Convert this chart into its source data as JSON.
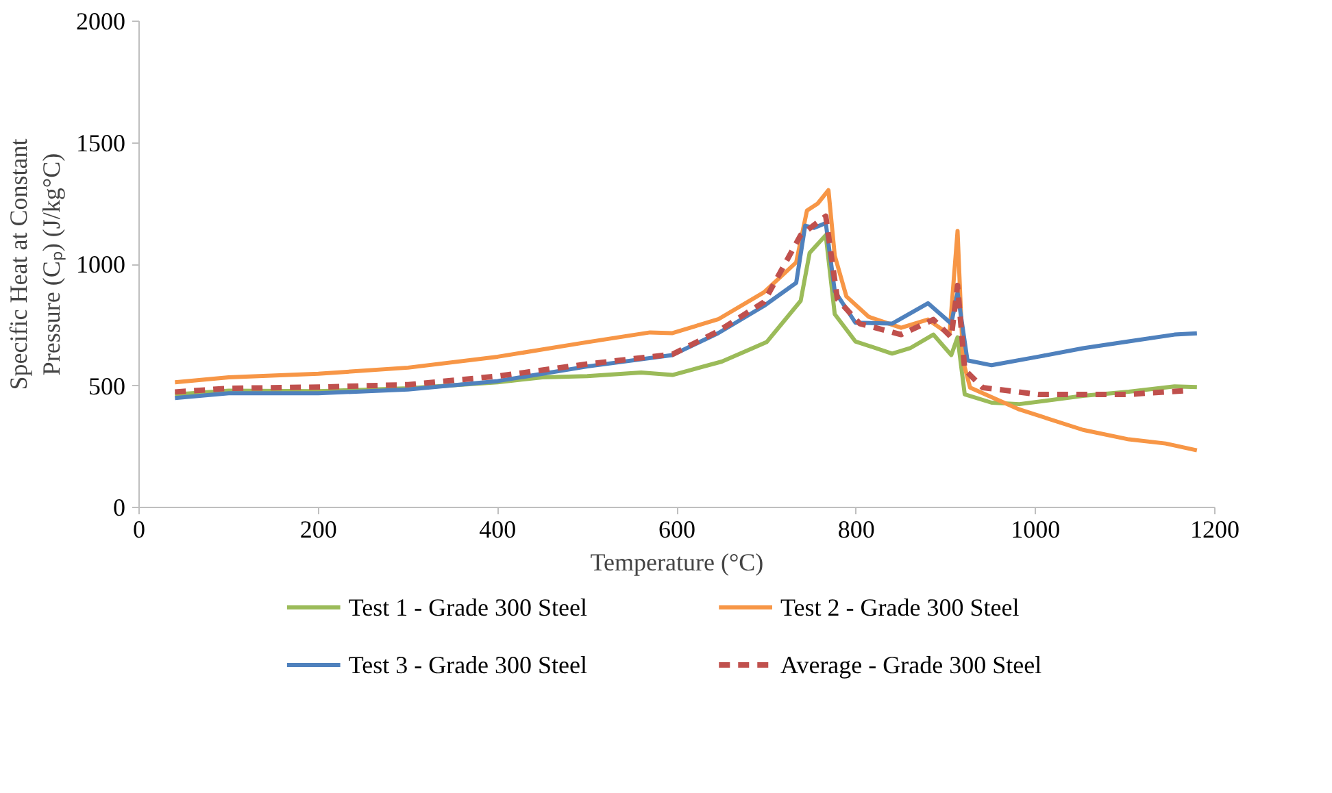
{
  "chart_data": {
    "type": "line",
    "xlabel": "Temperature (°C)",
    "ylabel": "Specific Heat at Constant Pressure (Cₚ) (J/kg°C)",
    "xlim": [
      0,
      1200
    ],
    "ylim": [
      0,
      2000
    ],
    "xticks": [
      0,
      200,
      400,
      600,
      800,
      1000,
      1200
    ],
    "yticks": [
      0,
      500,
      1000,
      1500,
      2000
    ],
    "grid": false,
    "legend": "bottom",
    "marker": "none",
    "series": [
      {
        "name": "Test 1 - Grade 300 Steel",
        "color": "#9bbb59",
        "line_style": "solid",
        "x": [
          40,
          100,
          200,
          300,
          400,
          450,
          500,
          560,
          595,
          650,
          700,
          738,
          748,
          766,
          776,
          799,
          840,
          860,
          886,
          906,
          913,
          921,
          951,
          982,
          1053,
          1104,
          1155,
          1180
        ],
        "values": [
          465,
          480,
          478,
          490,
          515,
          535,
          540,
          555,
          545,
          600,
          680,
          850,
          1047,
          1120,
          795,
          683,
          633,
          655,
          711,
          627,
          700,
          465,
          431,
          425,
          459,
          476,
          498,
          495
        ]
      },
      {
        "name": "Test 2 - Grade 300 Steel",
        "color": "#f79646",
        "line_style": "solid",
        "x": [
          40,
          100,
          200,
          300,
          400,
          500,
          570,
          595,
          646,
          697,
          733,
          745,
          757,
          769,
          776,
          789,
          814,
          850,
          880,
          904,
          913,
          919,
          927,
          982,
          1053,
          1104,
          1145,
          1180
        ],
        "values": [
          515,
          535,
          550,
          575,
          620,
          680,
          720,
          717,
          774,
          885,
          1008,
          1221,
          1250,
          1305,
          1036,
          868,
          784,
          739,
          773,
          711,
          1137,
          605,
          493,
          403,
          319,
          280,
          263,
          235
        ]
      },
      {
        "name": "Test 3 - Grade 300 Steel",
        "color": "#4f81bd",
        "line_style": "solid",
        "x": [
          40,
          100,
          200,
          300,
          400,
          500,
          595,
          646,
          697,
          733,
          743,
          753,
          766,
          776,
          799,
          840,
          880,
          906,
          913,
          924,
          951,
          1003,
          1053,
          1104,
          1155,
          1180
        ],
        "values": [
          450,
          470,
          470,
          485,
          520,
          580,
          627,
          717,
          829,
          924,
          1159,
          1150,
          1170,
          890,
          760,
          756,
          840,
          756,
          885,
          605,
          585,
          620,
          655,
          683,
          711,
          716
        ]
      },
      {
        "name": "Average - Grade 300 Steel",
        "color": "#c0504d",
        "line_style": "dashed",
        "x": [
          40,
          100,
          200,
          300,
          400,
          500,
          595,
          646,
          697,
          738,
          766,
          779,
          804,
          850,
          886,
          906,
          913,
          921,
          941,
          1003,
          1104,
          1165
        ],
        "values": [
          475,
          490,
          495,
          505,
          540,
          590,
          630,
          725,
          845,
          1120,
          1198,
          856,
          756,
          711,
          773,
          700,
          913,
          567,
          493,
          465,
          465,
          480
        ]
      }
    ]
  }
}
